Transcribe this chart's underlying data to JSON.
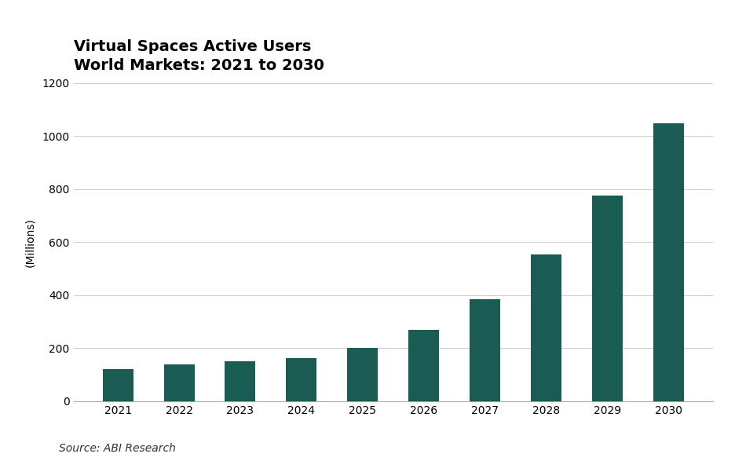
{
  "title_line1": "Virtual Spaces Active Users",
  "title_line2": "World Markets: 2021 to 2030",
  "years": [
    2021,
    2022,
    2023,
    2024,
    2025,
    2026,
    2027,
    2028,
    2029,
    2030
  ],
  "values": [
    120,
    138,
    150,
    163,
    200,
    268,
    385,
    553,
    775,
    1047
  ],
  "bar_color": "#1a5c54",
  "ylabel": "(Millions)",
  "ylim": [
    0,
    1200
  ],
  "yticks": [
    0,
    200,
    400,
    600,
    800,
    1000,
    1200
  ],
  "source_text": "Source: ABI Research",
  "background_color": "#ffffff",
  "title_fontsize": 14,
  "axis_label_fontsize": 10,
  "tick_fontsize": 10,
  "source_fontsize": 10,
  "bar_width": 0.5
}
